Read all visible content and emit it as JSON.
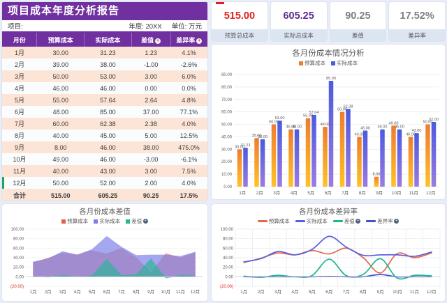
{
  "theme": {
    "page_bg": "#E9EDF7",
    "banner_purple": "#7030A0",
    "row_peach": "#FCE4D6",
    "accent_green": "#21A366",
    "tick_red": "#E02020"
  },
  "report": {
    "title": "项目成本年度分析报告",
    "project_label": "项目:",
    "year_label": "年度: 20XX",
    "unit_label": "单位: 万元"
  },
  "table": {
    "headers": [
      "月份",
      "预算成本",
      "实际成本",
      "差值",
      "差异率"
    ],
    "sort_columns": [
      3,
      4
    ],
    "rows": [
      [
        "1月",
        "30.00",
        "31.23",
        "1.23",
        "4.1%"
      ],
      [
        "2月",
        "39.00",
        "38.00",
        "-1.00",
        "-2.6%"
      ],
      [
        "3月",
        "50.00",
        "53.00",
        "3.00",
        "6.0%"
      ],
      [
        "4月",
        "46.00",
        "46.00",
        "0.00",
        "0.0%"
      ],
      [
        "5月",
        "55.00",
        "57.64",
        "2.64",
        "4.8%"
      ],
      [
        "6月",
        "48.00",
        "85.00",
        "37.00",
        "77.1%"
      ],
      [
        "7月",
        "60.00",
        "62.38",
        "2.38",
        "4.0%"
      ],
      [
        "8月",
        "40.00",
        "45.00",
        "5.00",
        "12.5%"
      ],
      [
        "9月",
        "8.00",
        "46.00",
        "38.00",
        "475.0%"
      ],
      [
        "10月",
        "49.00",
        "46.00",
        "-3.00",
        "-6.1%"
      ],
      [
        "11月",
        "40.00",
        "43.00",
        "3.00",
        "7.5%"
      ],
      [
        "12月",
        "50.00",
        "52.00",
        "2.00",
        "4.0%"
      ]
    ],
    "accent_row_index": 11,
    "total_row": [
      "合计",
      "515.00",
      "605.25",
      "90.25",
      "17.5%"
    ]
  },
  "stats": [
    {
      "value": "515.00",
      "label": "预算总成本",
      "color": "#E02020"
    },
    {
      "value": "605.25",
      "label": "实际总成本",
      "color": "#5B2D90"
    },
    {
      "value": "90.25",
      "label": "差值",
      "color": "#808080"
    },
    {
      "value": "17.52%",
      "label": "差异率",
      "color": "#808080"
    }
  ],
  "chart_data": [
    {
      "type": "bar",
      "title": "各月份成本情况分析",
      "categories": [
        "1月",
        "2月",
        "3月",
        "4月",
        "5月",
        "6月",
        "7月",
        "8月",
        "9月",
        "10月",
        "11月",
        "12月"
      ],
      "series": [
        {
          "name": "预算成本",
          "values": [
            30,
            39,
            50,
            46,
            55,
            48,
            60,
            40,
            8,
            49,
            40,
            50
          ],
          "color_top": "#ED7D31",
          "color_bottom": "#FFC224",
          "badge": false
        },
        {
          "name": "实际成本",
          "values": [
            31.23,
            38,
            53,
            46,
            57.64,
            85,
            62.38,
            45,
            46,
            46,
            43,
            52
          ],
          "color_top": "#4A5BE0",
          "color_bottom": "#9B7BE0",
          "badge": false
        }
      ],
      "ylim": [
        0,
        90
      ],
      "ytick_step": 10,
      "grid": true,
      "legend_position": "top"
    },
    {
      "type": "area",
      "title": "各月份成本差值",
      "categories": [
        "1月",
        "2月",
        "3月",
        "4月",
        "5月",
        "6月",
        "7月",
        "8月",
        "9月",
        "10月",
        "11月",
        "12月"
      ],
      "series": [
        {
          "name": "预算成本",
          "values": [
            30,
            39,
            50,
            46,
            55,
            48,
            60,
            40,
            8,
            49,
            40,
            50
          ],
          "color": "#E0604C",
          "opacity": 0.55,
          "badge": false
        },
        {
          "name": "实际成本",
          "values": [
            31.23,
            38,
            53,
            46,
            57.64,
            85,
            62.38,
            45,
            46,
            46,
            43,
            52
          ],
          "color": "#7B7FE8",
          "opacity": 0.68,
          "badge": false
        },
        {
          "name": "差值",
          "values": [
            1.23,
            -1,
            3,
            0,
            2.64,
            37,
            2.38,
            5,
            38,
            -3,
            3,
            2
          ],
          "color": "#27B597",
          "opacity": 0.65,
          "badge": true
        }
      ],
      "ylim": [
        -20,
        100
      ],
      "ytick_step": 20,
      "grid": false,
      "legend_position": "top",
      "negative_tick_label": "(20.00)"
    },
    {
      "type": "line",
      "title": "各月份成本差异率",
      "categories": [
        "1月",
        "2月",
        "3月",
        "4月",
        "5月",
        "6月",
        "7月",
        "8月",
        "9月",
        "10月",
        "11月",
        "12月"
      ],
      "series": [
        {
          "name": "预算成本",
          "values": [
            30,
            39,
            50,
            46,
            55,
            48,
            60,
            40,
            8,
            49,
            40,
            50
          ],
          "color": "#E8684A",
          "badge": false
        },
        {
          "name": "实际成本",
          "values": [
            31.23,
            38,
            53,
            46,
            57.64,
            85,
            62.38,
            45,
            46,
            46,
            43,
            52
          ],
          "color": "#5B5FE0",
          "badge": false
        },
        {
          "name": "差值",
          "values": [
            1.23,
            -1,
            3,
            0,
            2.64,
            37,
            2.38,
            5,
            38,
            -3,
            3,
            2
          ],
          "color": "#1DB58F",
          "badge": true
        },
        {
          "name": "差异率",
          "values": [
            0.041,
            -0.026,
            0.06,
            0,
            0.048,
            0.771,
            0.04,
            0.125,
            4.75,
            -0.061,
            0.075,
            0.04
          ],
          "color": "#3D55C8",
          "badge": true
        }
      ],
      "ylim": [
        -20,
        100
      ],
      "ytick_step": 20,
      "grid": true,
      "legend_position": "top",
      "negative_tick_label": "(20.00)"
    }
  ]
}
